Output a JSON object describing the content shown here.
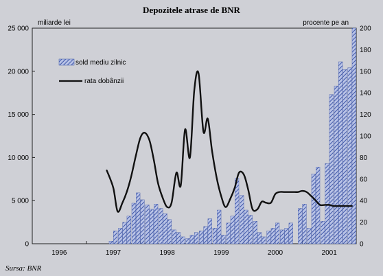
{
  "chart_data": {
    "type": "bar+line",
    "title": "Depozitele atrase de BNR",
    "ylabel_left": "miliarde lei",
    "ylabel_right": "procente pe an",
    "source": "Sursa: BNR",
    "ylim_left": [
      0,
      25000
    ],
    "ylim_right": [
      0,
      200
    ],
    "yticks_left": [
      "0",
      "5 000",
      "10 000",
      "15 000",
      "20 000",
      "25 000"
    ],
    "yticks_right": [
      "0",
      "20",
      "40",
      "60",
      "80",
      "100",
      "120",
      "140",
      "160",
      "180",
      "200"
    ],
    "yticks_left_values": [
      0,
      5000,
      10000,
      15000,
      20000,
      25000
    ],
    "yticks_right_values": [
      0,
      20,
      40,
      60,
      80,
      100,
      120,
      140,
      160,
      180,
      200
    ],
    "x_range": [
      1995.5,
      2001.5
    ],
    "year_labels": [
      "1996",
      "1997",
      "1998",
      "1999",
      "2000",
      "2001"
    ],
    "year_label_positions": [
      1996.0,
      1997.0,
      1998.0,
      1999.0,
      2000.0,
      2001.0
    ],
    "legend": [
      {
        "name": "sold mediu zilnic",
        "kind": "bar"
      },
      {
        "name": "rata dobânzii",
        "kind": "line"
      }
    ],
    "bar_series": {
      "name": "sold mediu zilnic",
      "color": "#5a6fb3",
      "x": [
        1996.96,
        1997.04,
        1997.13,
        1997.21,
        1997.29,
        1997.38,
        1997.46,
        1997.54,
        1997.63,
        1997.71,
        1997.79,
        1997.88,
        1997.96,
        1998.04,
        1998.13,
        1998.21,
        1998.29,
        1998.38,
        1998.46,
        1998.54,
        1998.63,
        1998.71,
        1998.79,
        1998.88,
        1998.96,
        1999.04,
        1999.13,
        1999.21,
        1999.29,
        1999.38,
        1999.46,
        1999.54,
        1999.63,
        1999.71,
        1999.79,
        1999.88,
        1999.96,
        2000.04,
        2000.13,
        2000.21,
        2000.29,
        2000.38,
        2000.46,
        2000.54,
        2000.63,
        2000.71,
        2000.79,
        2000.88,
        2000.96,
        2001.04,
        2001.13,
        2001.21,
        2001.29,
        2001.38,
        2001.46
      ],
      "values": [
        300,
        1500,
        1800,
        2500,
        3200,
        4700,
        5900,
        5100,
        4500,
        4000,
        4600,
        4100,
        3500,
        2800,
        1600,
        1300,
        800,
        600,
        1000,
        1300,
        1500,
        2000,
        2900,
        1800,
        3900,
        1000,
        2400,
        3200,
        7600,
        5600,
        3900,
        3300,
        2600,
        1300,
        800,
        1500,
        1800,
        2400,
        1600,
        1800,
        2400,
        0,
        4100,
        4600,
        1800,
        8100,
        8900,
        2600,
        9300,
        17300,
        18300,
        21100,
        20200,
        20400,
        25000
      ]
    },
    "line_series": {
      "name": "rata dobânzii",
      "color": "#111111",
      "x": [
        1996.88,
        1997.0,
        1997.08,
        1997.17,
        1997.25,
        1997.33,
        1997.42,
        1997.5,
        1997.58,
        1997.67,
        1997.75,
        1997.83,
        1997.92,
        1998.0,
        1998.08,
        1998.17,
        1998.25,
        1998.33,
        1998.42,
        1998.5,
        1998.58,
        1998.67,
        1998.75,
        1998.83,
        1998.92,
        1999.0,
        1999.08,
        1999.17,
        1999.25,
        1999.33,
        1999.42,
        1999.5,
        1999.58,
        1999.67,
        1999.75,
        1999.83,
        1999.92,
        2000.0,
        2000.08,
        2000.17,
        2000.25,
        2000.33,
        2000.42,
        2000.5,
        2000.58,
        2000.67,
        2000.75,
        2000.83,
        2000.92,
        2001.0,
        2001.08,
        2001.17,
        2001.25,
        2001.33,
        2001.42
      ],
      "values": [
        68,
        52,
        30,
        38,
        48,
        62,
        82,
        98,
        103,
        96,
        78,
        56,
        42,
        34,
        38,
        66,
        54,
        106,
        80,
        142,
        158,
        104,
        116,
        86,
        60,
        44,
        34,
        42,
        52,
        66,
        64,
        50,
        32,
        32,
        39,
        38,
        38,
        46,
        48,
        48,
        48,
        48,
        48,
        49,
        48,
        44,
        40,
        36,
        36,
        36,
        35,
        35,
        35,
        35,
        35
      ]
    }
  }
}
